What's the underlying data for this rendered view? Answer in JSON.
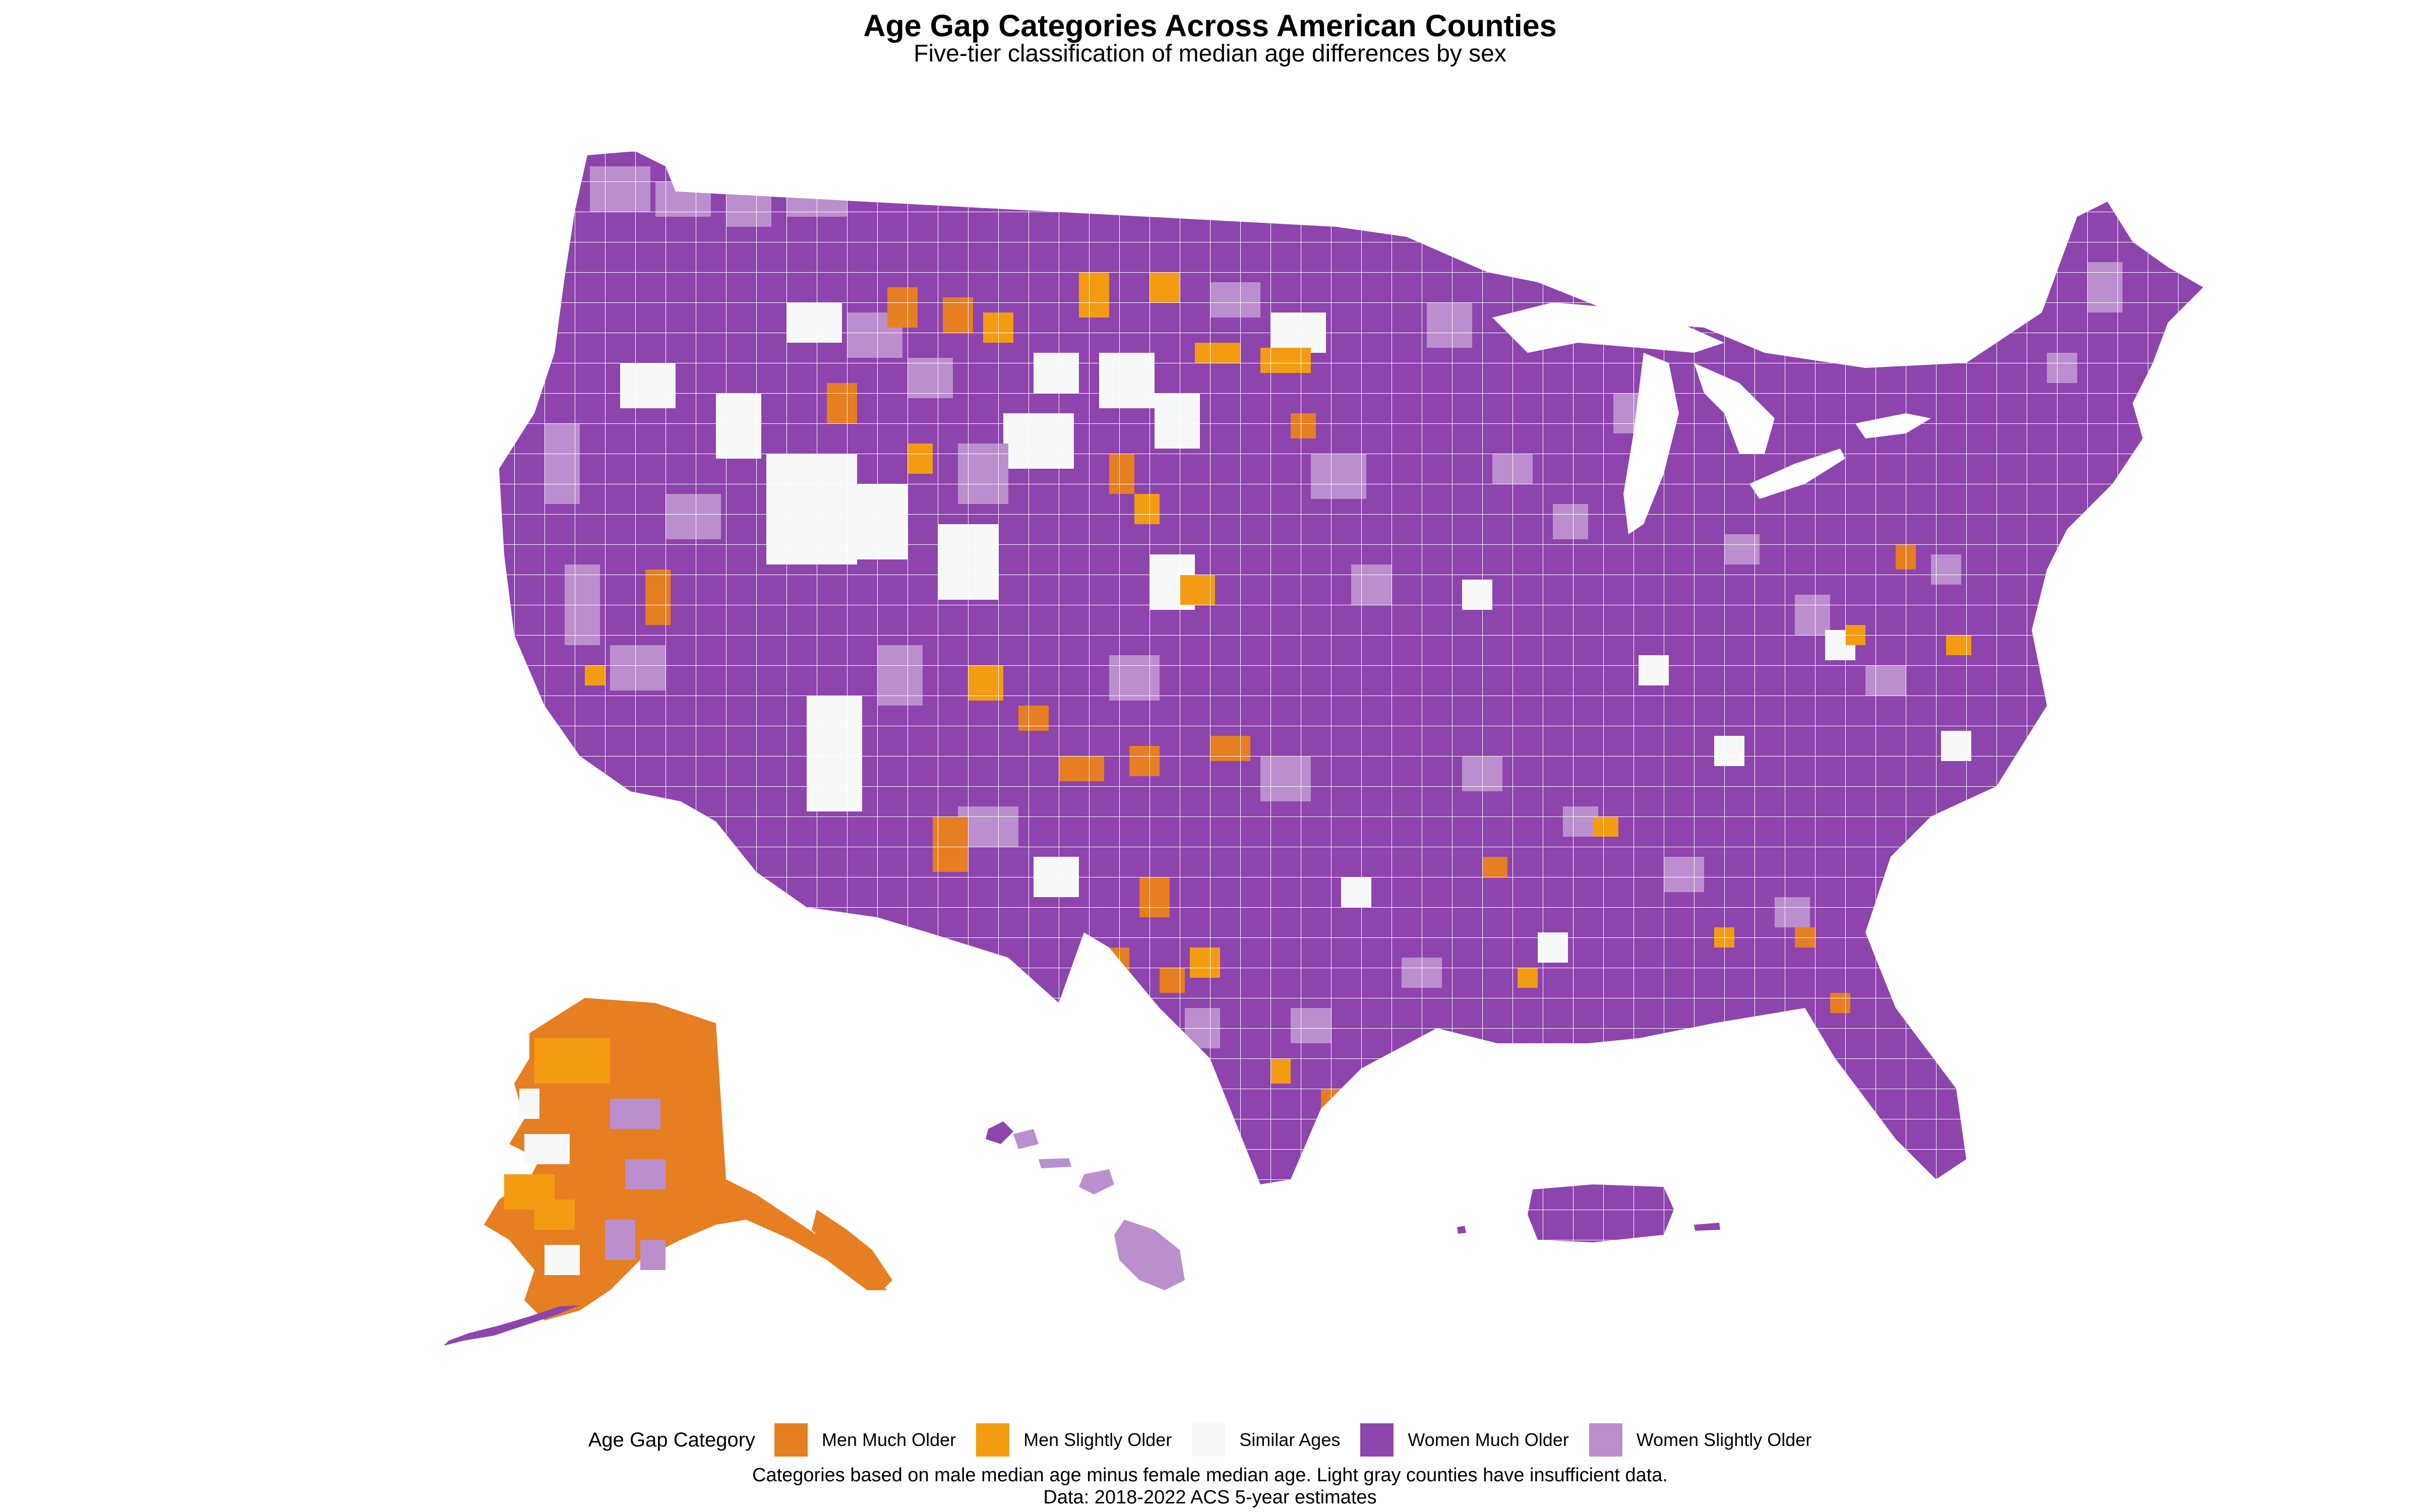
{
  "title": "Age Gap Categories Across American Counties",
  "subtitle": "Five-tier classification of median age differences by sex",
  "legend": {
    "title": "Age Gap Category",
    "items": [
      {
        "label": "Men Much Older",
        "color": "#E67E22"
      },
      {
        "label": "Men Slightly Older",
        "color": "#F39C12"
      },
      {
        "label": "Similar Ages",
        "color": "#F7F9F9"
      },
      {
        "label": "Women Much Older",
        "color": "#8E44AD"
      },
      {
        "label": "Women Slightly Older",
        "color": "#BB8FCE"
      }
    ]
  },
  "caption": {
    "line1": "Categories based on male median age minus female median age. Light gray counties have insufficient data.",
    "line2": "Data: 2018-2022 ACS 5-year estimates"
  },
  "map": {
    "dominant_category": "Women Much Older",
    "regions": [
      "Contiguous US",
      "Alaska",
      "Hawaii",
      "Puerto Rico"
    ],
    "region_categories": {
      "Contiguous US": "Women Much Older",
      "Alaska": "Men Much Older",
      "Hawaii": "Women Slightly Older",
      "Puerto Rico": "Women Much Older"
    }
  }
}
